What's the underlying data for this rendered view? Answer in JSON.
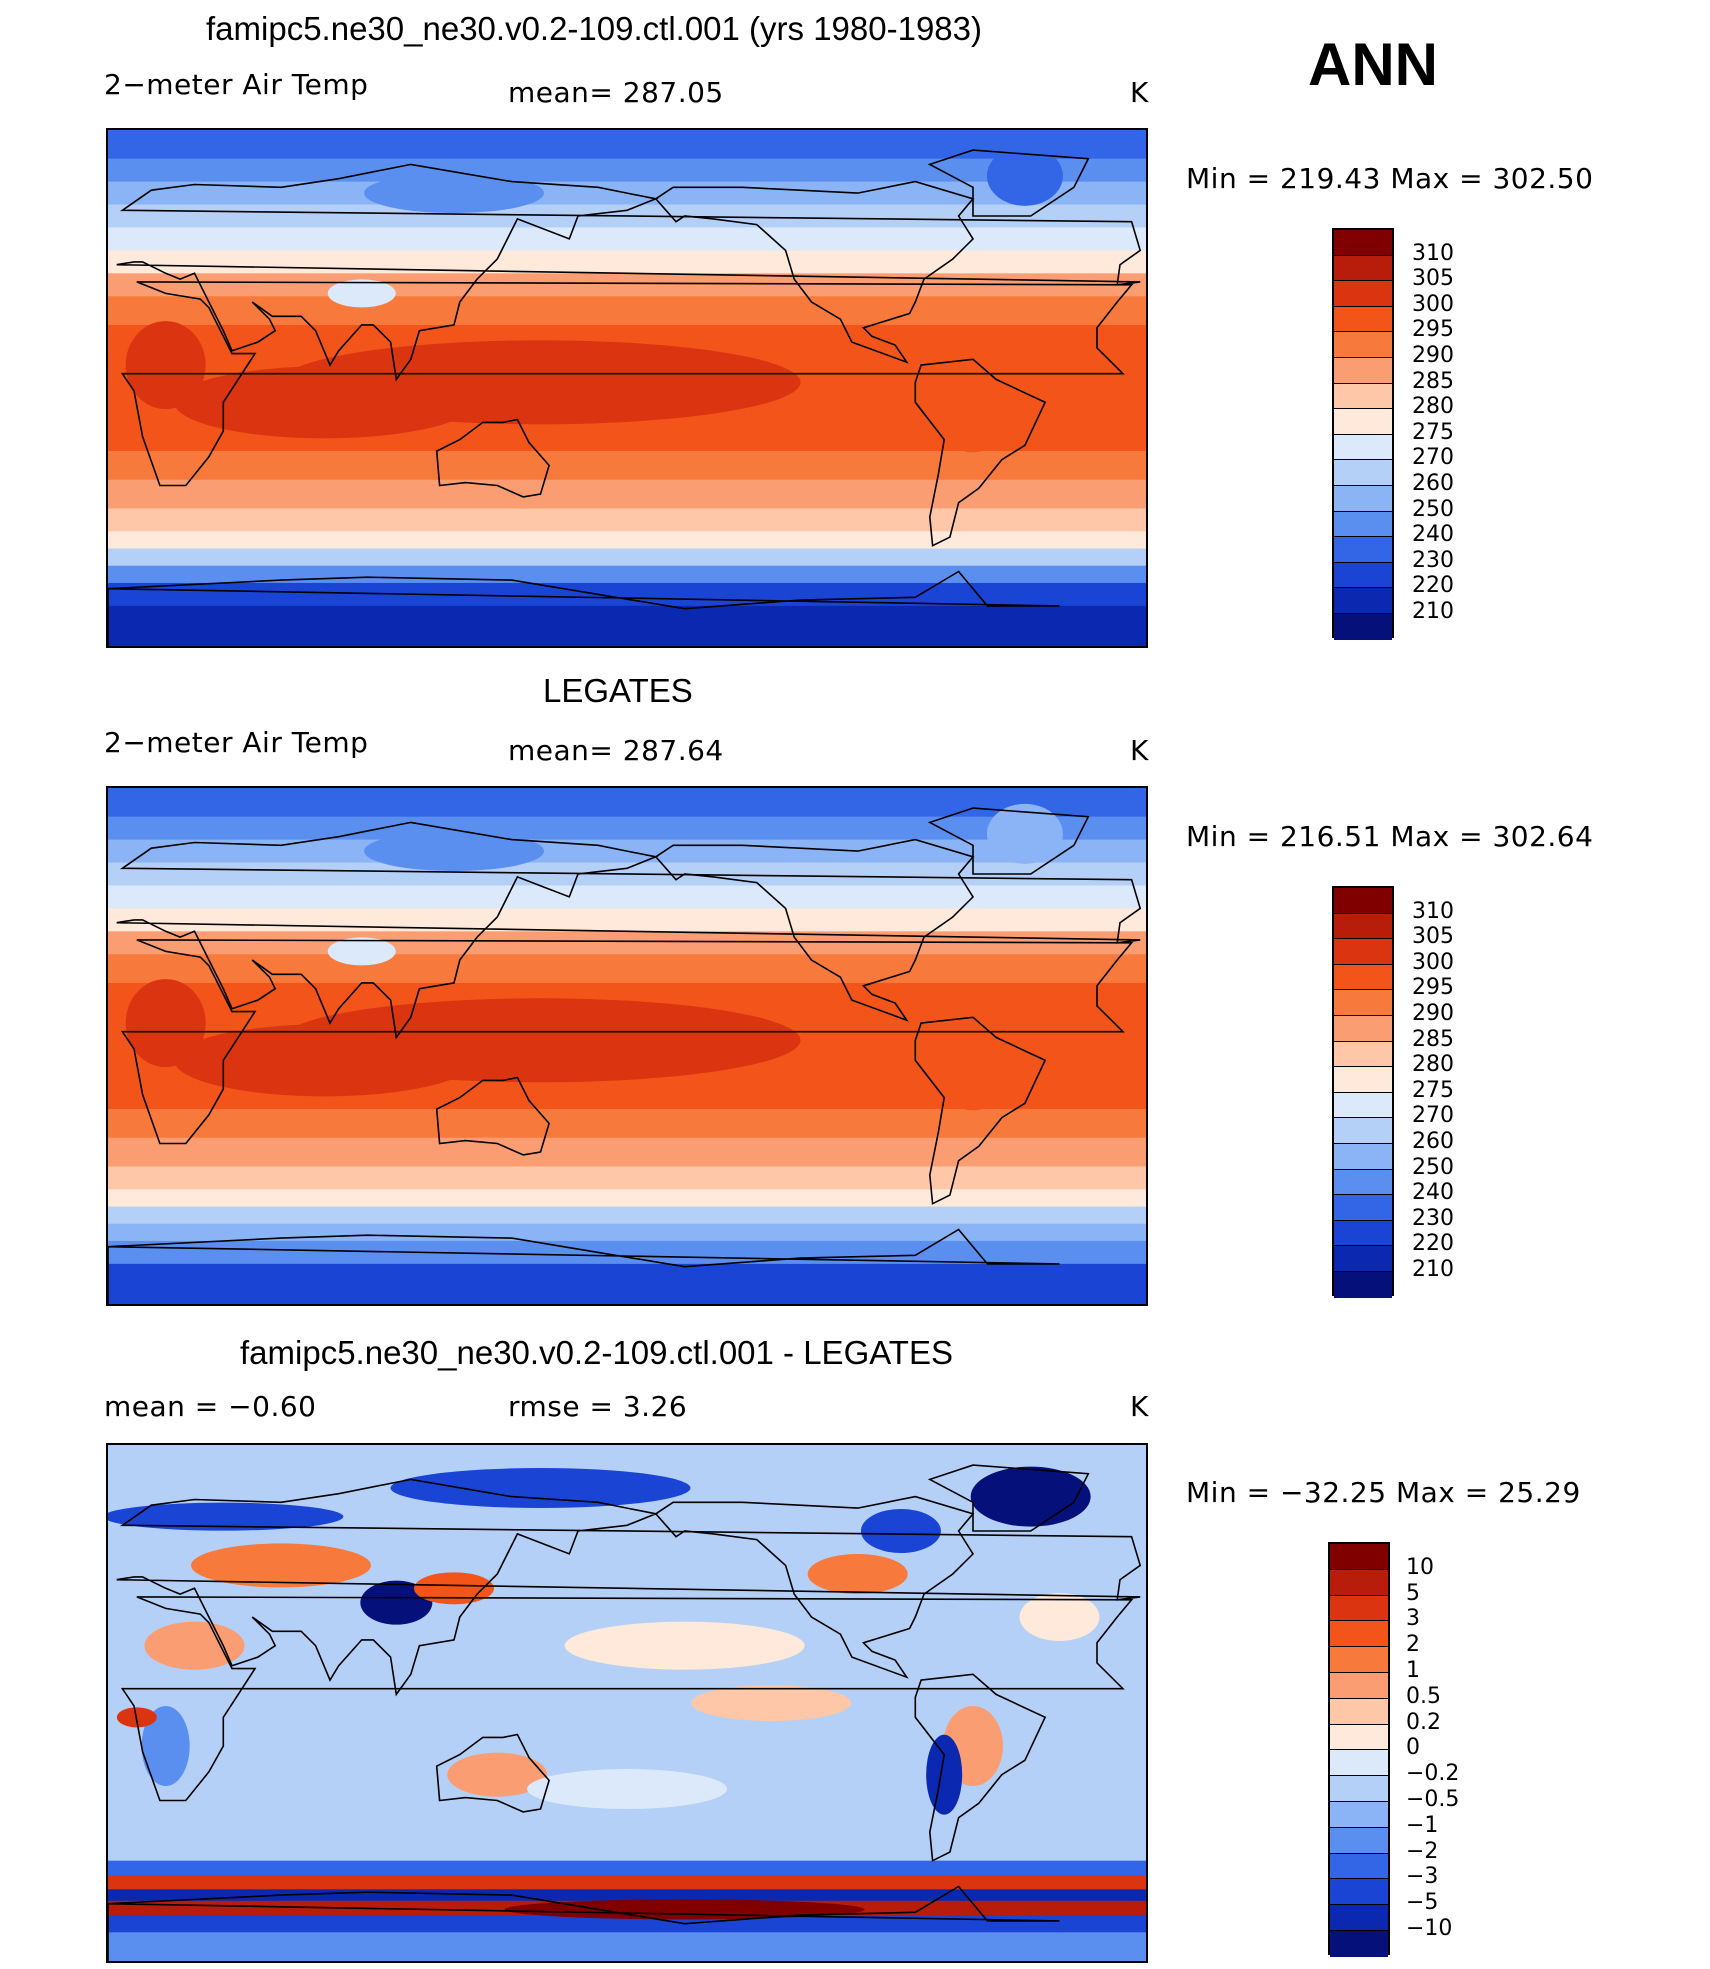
{
  "season": "ANN",
  "panels": [
    {
      "title": "famipc5.ne30_ne30.v0.2-109.ctl.001 (yrs 1980-1983)",
      "left": "2−meter Air Temp",
      "mid": "mean=  287.05",
      "units": "K",
      "minmax": "Min  =  219.43  Max  =  302.50",
      "field": "model"
    },
    {
      "title": "LEGATES",
      "left": "2−meter Air Temp",
      "mid": "mean=  287.64",
      "units": "K",
      "minmax": "Min  =  216.51  Max  =  302.64",
      "field": "obs"
    },
    {
      "title": "famipc5.ne30_ne30.v0.2-109.ctl.001 - LEGATES",
      "left": "mean  =    −0.60",
      "mid": "rmse  =     3.26",
      "units": "K",
      "minmax": "Min  =  −32.25  Max  =    25.29",
      "field": "diff"
    }
  ],
  "colorbars": {
    "temp": {
      "labels": [
        "310",
        "305",
        "300",
        "295",
        "290",
        "285",
        "280",
        "275",
        "270",
        "260",
        "250",
        "240",
        "230",
        "220",
        "210"
      ],
      "colors": [
        "#800000",
        "#b81c0a",
        "#db3410",
        "#f2541a",
        "#f77a3c",
        "#fb9d72",
        "#fdc7a8",
        "#fee9da",
        "#dbe9fb",
        "#b5d0f7",
        "#8ab4f5",
        "#5a8ff0",
        "#3366e6",
        "#1a44d4",
        "#0a28b0",
        "#05107a"
      ]
    },
    "diff": {
      "labels": [
        "10",
        "5",
        "3",
        "2",
        "1",
        "0.5",
        "0.2",
        "0",
        "−0.2",
        "−0.5",
        "−1",
        "−2",
        "−3",
        "−5",
        "−10"
      ],
      "colors": [
        "#800000",
        "#b81c0a",
        "#db3410",
        "#f2541a",
        "#f77a3c",
        "#fb9d72",
        "#fdc7a8",
        "#fee9da",
        "#dbe9fb",
        "#b5d0f7",
        "#8ab4f5",
        "#5a8ff0",
        "#3366e6",
        "#1a44d4",
        "#0a28b0",
        "#05107a"
      ]
    }
  }
}
